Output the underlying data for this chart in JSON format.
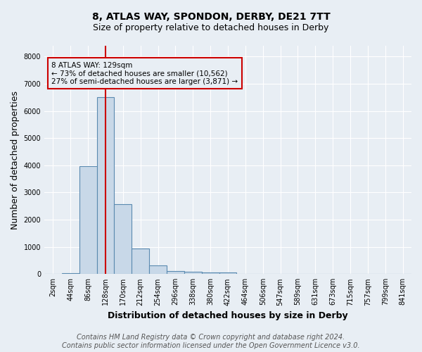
{
  "title": "8, ATLAS WAY, SPONDON, DERBY, DE21 7TT",
  "subtitle": "Size of property relative to detached houses in Derby",
  "xlabel": "Distribution of detached houses by size in Derby",
  "ylabel": "Number of detached properties",
  "bin_labels": [
    "2sqm",
    "44sqm",
    "86sqm",
    "128sqm",
    "170sqm",
    "212sqm",
    "254sqm",
    "296sqm",
    "338sqm",
    "380sqm",
    "422sqm",
    "464sqm",
    "506sqm",
    "547sqm",
    "589sqm",
    "631sqm",
    "673sqm",
    "715sqm",
    "757sqm",
    "799sqm",
    "841sqm"
  ],
  "bar_heights": [
    20,
    40,
    3980,
    6520,
    2580,
    950,
    320,
    120,
    80,
    50,
    50,
    0,
    0,
    0,
    0,
    0,
    0,
    0,
    0,
    0,
    0
  ],
  "bar_color": "#c8d8e8",
  "bar_edgecolor": "#5a8ab0",
  "bar_linewidth": 0.8,
  "vline_x": 3.5,
  "vline_color": "#cc0000",
  "annotation_text": "8 ATLAS WAY: 129sqm\n← 73% of detached houses are smaller (10,562)\n27% of semi-detached houses are larger (3,871) →",
  "annotation_box_color": "#cc0000",
  "ylim": [
    0,
    8400
  ],
  "yticks": [
    0,
    1000,
    2000,
    3000,
    4000,
    5000,
    6000,
    7000,
    8000
  ],
  "footer_line1": "Contains HM Land Registry data © Crown copyright and database right 2024.",
  "footer_line2": "Contains public sector information licensed under the Open Government Licence v3.0.",
  "background_color": "#e8eef4",
  "plot_background": "#e8eef4",
  "grid_color": "#ffffff",
  "title_fontsize": 10,
  "subtitle_fontsize": 9,
  "axis_label_fontsize": 9,
  "tick_fontsize": 7,
  "footer_fontsize": 7,
  "annotation_fontsize": 7.5
}
